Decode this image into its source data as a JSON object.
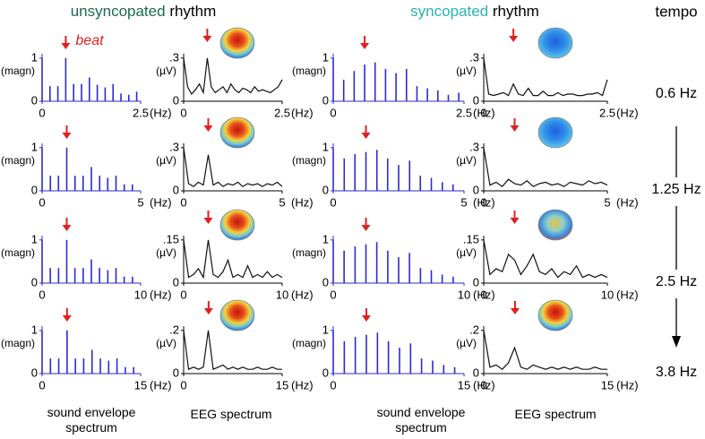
{
  "headings": [
    {
      "highlight": "unsyncopated",
      "rest": "rhythm"
    },
    {
      "highlight": "syncopated",
      "rest": "rhythm"
    }
  ],
  "tempo_title": "tempo",
  "tempos": [
    "0.6 Hz",
    "1.25 Hz",
    "2.5 Hz",
    "3.8 Hz"
  ],
  "annotation": "beat",
  "footers": [
    "sound envelope spectrum",
    "EEG spectrum",
    "sound envelope spectrum",
    "EEG spectrum"
  ],
  "chart_data": [
    {
      "type": "stem",
      "ylabel": "(magn)",
      "xlabel": "(Hz)",
      "color": "#2b2bd0",
      "xlim": [
        0,
        2.5
      ],
      "xticks": [
        0,
        2.5
      ],
      "ylim": [
        0,
        1.1
      ],
      "yticks": [
        0,
        1
      ],
      "x": [
        0,
        0.2,
        0.4,
        0.6,
        0.8,
        1,
        1.2,
        1.4,
        1.6,
        1.8,
        2,
        2.2,
        2.4
      ],
      "values": [
        1,
        0.35,
        0.35,
        1,
        0.4,
        0.4,
        0.55,
        0.38,
        0.32,
        0.4,
        0.18,
        0.15,
        0.22
      ]
    },
    {
      "type": "line",
      "ylabel": "(µV)",
      "xlabel": "(Hz)",
      "color": "#111111",
      "xlim": [
        0,
        2.5
      ],
      "xticks": [
        0,
        2.5
      ],
      "ylim": [
        0,
        0.33
      ],
      "yticks": [
        0,
        {
          "value": 0.3,
          "label": ".3"
        }
      ],
      "x": [
        0,
        0.1,
        0.2,
        0.3,
        0.4,
        0.5,
        0.6,
        0.7,
        0.8,
        0.9,
        1,
        1.1,
        1.2,
        1.3,
        1.4,
        1.5,
        1.6,
        1.7,
        1.8,
        1.9,
        2,
        2.1,
        2.2,
        2.3,
        2.4,
        2.5
      ],
      "values": [
        0.3,
        0.1,
        0.05,
        0.08,
        0.12,
        0.06,
        0.3,
        0.1,
        0.06,
        0.08,
        0.1,
        0.06,
        0.12,
        0.08,
        0.06,
        0.09,
        0.08,
        0.06,
        0.1,
        0.07,
        0.08,
        0.07,
        0.06,
        0.08,
        0.1,
        0.15
      ]
    },
    {
      "type": "stem",
      "ylabel": "(magn)",
      "xlabel": "(Hz)",
      "color": "#2b2bd0",
      "xlim": [
        0,
        2.5
      ],
      "xticks": [
        0,
        2.5
      ],
      "ylim": [
        0,
        1.1
      ],
      "yticks": [
        0,
        1
      ],
      "x": [
        0,
        0.2,
        0.4,
        0.6,
        0.8,
        1,
        1.2,
        1.4,
        1.6,
        1.8,
        2,
        2.2,
        2.4
      ],
      "values": [
        1,
        0.5,
        0.7,
        0.85,
        0.9,
        0.75,
        0.65,
        0.75,
        0.35,
        0.3,
        0.25,
        0.15,
        0.2
      ]
    },
    {
      "type": "line",
      "ylabel": "(µV)",
      "xlabel": "(Hz)",
      "color": "#111111",
      "xlim": [
        0,
        2.5
      ],
      "xticks": [
        0,
        2.5
      ],
      "ylim": [
        0,
        0.33
      ],
      "yticks": [
        0,
        {
          "value": 0.3,
          "label": ".3"
        }
      ],
      "x": [
        0,
        0.1,
        0.2,
        0.3,
        0.4,
        0.5,
        0.6,
        0.7,
        0.8,
        0.9,
        1,
        1.1,
        1.2,
        1.3,
        1.4,
        1.5,
        1.6,
        1.7,
        1.8,
        1.9,
        2,
        2.1,
        2.2,
        2.3,
        2.4,
        2.5
      ],
      "values": [
        0.3,
        0.05,
        0.04,
        0.05,
        0.06,
        0.04,
        0.12,
        0.05,
        0.04,
        0.09,
        0.04,
        0.04,
        0.07,
        0.04,
        0.04,
        0.06,
        0.04,
        0.05,
        0.05,
        0.04,
        0.04,
        0.05,
        0.05,
        0.06,
        0.04,
        0.15
      ]
    },
    {
      "type": "stem",
      "ylabel": "(magn)",
      "xlabel": "(Hz)",
      "color": "#2b2bd0",
      "xlim": [
        0,
        5
      ],
      "xticks": [
        0,
        5
      ],
      "ylim": [
        0,
        1.1
      ],
      "yticks": [
        0,
        1
      ],
      "x": [
        0,
        0.42,
        0.83,
        1.25,
        1.67,
        2.08,
        2.5,
        2.92,
        3.33,
        3.75,
        4.17,
        4.58
      ],
      "values": [
        1,
        0.35,
        0.35,
        1,
        0.35,
        0.35,
        0.55,
        0.35,
        0.3,
        0.35,
        0.15,
        0.15
      ]
    },
    {
      "type": "line",
      "ylabel": "(µV)",
      "xlabel": "(Hz)",
      "color": "#111111",
      "xlim": [
        0,
        5
      ],
      "xticks": [
        0,
        5
      ],
      "ylim": [
        0,
        0.33
      ],
      "yticks": [
        0,
        {
          "value": 0.3,
          "label": ".3"
        }
      ],
      "x": [
        0,
        0.25,
        0.5,
        0.75,
        1,
        1.25,
        1.5,
        1.75,
        2,
        2.25,
        2.5,
        2.75,
        3,
        3.25,
        3.5,
        3.75,
        4,
        4.25,
        4.5,
        4.75,
        5
      ],
      "values": [
        0.3,
        0.05,
        0.03,
        0.06,
        0.04,
        0.25,
        0.04,
        0.06,
        0.03,
        0.05,
        0.04,
        0.06,
        0.03,
        0.05,
        0.04,
        0.05,
        0.03,
        0.05,
        0.04,
        0.06,
        0.03
      ]
    },
    {
      "type": "stem",
      "ylabel": "(magn)",
      "xlabel": "(Hz)",
      "color": "#2b2bd0",
      "xlim": [
        0,
        5
      ],
      "xticks": [
        0,
        5
      ],
      "ylim": [
        0,
        1.1
      ],
      "yticks": [
        0,
        1
      ],
      "x": [
        0,
        0.42,
        0.83,
        1.25,
        1.67,
        2.08,
        2.5,
        2.92,
        3.33,
        3.75,
        4.17,
        4.58
      ],
      "values": [
        1,
        0.75,
        0.85,
        0.9,
        0.95,
        0.75,
        0.6,
        0.7,
        0.35,
        0.3,
        0.2,
        0.15
      ]
    },
    {
      "type": "line",
      "ylabel": "(µV)",
      "xlabel": "(Hz)",
      "color": "#111111",
      "xlim": [
        0,
        5
      ],
      "xticks": [
        0,
        5
      ],
      "ylim": [
        0,
        0.33
      ],
      "yticks": [
        0,
        {
          "value": 0.3,
          "label": ".3"
        }
      ],
      "x": [
        0,
        0.25,
        0.5,
        0.75,
        1,
        1.25,
        1.5,
        1.75,
        2,
        2.25,
        2.5,
        2.75,
        3,
        3.25,
        3.5,
        3.75,
        4,
        4.25,
        4.5,
        4.75,
        5
      ],
      "values": [
        0.3,
        0.04,
        0.06,
        0.03,
        0.08,
        0.05,
        0.04,
        0.07,
        0.03,
        0.05,
        0.06,
        0.04,
        0.05,
        0.03,
        0.06,
        0.05,
        0.04,
        0.07,
        0.05,
        0.06,
        0.04
      ]
    },
    {
      "type": "stem",
      "ylabel": "(magn)",
      "xlabel": "(Hz)",
      "color": "#2b2bd0",
      "xlim": [
        0,
        10
      ],
      "xticks": [
        0,
        10
      ],
      "ylim": [
        0,
        1.1
      ],
      "yticks": [
        0,
        1
      ],
      "x": [
        0,
        0.83,
        1.67,
        2.5,
        3.33,
        4.17,
        5,
        5.83,
        6.67,
        7.5,
        8.33,
        9.17
      ],
      "values": [
        1,
        0.35,
        0.35,
        1,
        0.35,
        0.35,
        0.55,
        0.35,
        0.3,
        0.35,
        0.15,
        0.15
      ]
    },
    {
      "type": "line",
      "ylabel": "(µV)",
      "xlabel": "(Hz)",
      "color": "#111111",
      "xlim": [
        0,
        10
      ],
      "xticks": [
        0,
        10
      ],
      "ylim": [
        0,
        0.165
      ],
      "yticks": [
        0,
        {
          "value": 0.15,
          "label": ".15"
        }
      ],
      "x": [
        0,
        0.5,
        1,
        1.5,
        2,
        2.5,
        3,
        3.5,
        4,
        4.5,
        5,
        5.5,
        6,
        6.5,
        7,
        7.5,
        8,
        8.5,
        9,
        9.5,
        10
      ],
      "values": [
        0.15,
        0.02,
        0.03,
        0.05,
        0.02,
        0.15,
        0.03,
        0.02,
        0.04,
        0.08,
        0.02,
        0.03,
        0.02,
        0.06,
        0.02,
        0.03,
        0.02,
        0.04,
        0.02,
        0.03,
        0.02
      ]
    },
    {
      "type": "stem",
      "ylabel": "(magn)",
      "xlabel": "(Hz)",
      "color": "#2b2bd0",
      "xlim": [
        0,
        10
      ],
      "xticks": [
        0,
        10
      ],
      "ylim": [
        0,
        1.1
      ],
      "yticks": [
        0,
        1
      ],
      "x": [
        0,
        0.83,
        1.67,
        2.5,
        3.33,
        4.17,
        5,
        5.83,
        6.67,
        7.5,
        8.33,
        9.17
      ],
      "values": [
        1,
        0.75,
        0.85,
        0.9,
        0.95,
        0.75,
        0.6,
        0.7,
        0.35,
        0.3,
        0.2,
        0.15
      ]
    },
    {
      "type": "line",
      "ylabel": "(µV)",
      "xlabel": "(Hz)",
      "color": "#111111",
      "xlim": [
        0,
        10
      ],
      "xticks": [
        0,
        10
      ],
      "ylim": [
        0,
        0.165
      ],
      "yticks": [
        0,
        {
          "value": 0.15,
          "label": ".15"
        }
      ],
      "x": [
        0,
        0.5,
        1,
        1.5,
        2,
        2.5,
        3,
        3.5,
        4,
        4.5,
        5,
        5.5,
        6,
        6.5,
        7,
        7.5,
        8,
        8.5,
        9,
        9.5,
        10
      ],
      "values": [
        0.15,
        0.03,
        0.05,
        0.04,
        0.1,
        0.08,
        0.03,
        0.06,
        0.1,
        0.04,
        0.03,
        0.05,
        0.02,
        0.04,
        0.03,
        0.06,
        0.02,
        0.03,
        0.02,
        0.03,
        0.02
      ]
    },
    {
      "type": "stem",
      "ylabel": "(magn)",
      "xlabel": "(Hz)",
      "color": "#2b2bd0",
      "xlim": [
        0,
        15
      ],
      "xticks": [
        0,
        15
      ],
      "ylim": [
        0,
        1.1
      ],
      "yticks": [
        0,
        1
      ],
      "x": [
        0,
        1.27,
        2.53,
        3.8,
        5.07,
        6.33,
        7.6,
        8.87,
        10.13,
        11.4,
        12.67,
        13.93
      ],
      "values": [
        1,
        0.35,
        0.35,
        1,
        0.35,
        0.35,
        0.55,
        0.35,
        0.3,
        0.35,
        0.15,
        0.15
      ]
    },
    {
      "type": "line",
      "ylabel": "(µV)",
      "xlabel": "(Hz)",
      "color": "#111111",
      "xlim": [
        0,
        15
      ],
      "xticks": [
        0,
        15
      ],
      "ylim": [
        0,
        0.22
      ],
      "yticks": [
        0,
        {
          "value": 0.2,
          "label": ".2"
        }
      ],
      "x": [
        0,
        0.75,
        1.5,
        2.25,
        3,
        3.75,
        4.5,
        5.25,
        6,
        6.75,
        7.5,
        8.25,
        9,
        9.75,
        10.5,
        11.25,
        12,
        12.75,
        13.5,
        14.25,
        15
      ],
      "values": [
        0.2,
        0.02,
        0.03,
        0.02,
        0.03,
        0.2,
        0.02,
        0.03,
        0.04,
        0.02,
        0.03,
        0.02,
        0.03,
        0.02,
        0.02,
        0.03,
        0.02,
        0.02,
        0.03,
        0.02,
        0.02
      ]
    },
    {
      "type": "stem",
      "ylabel": "(magn)",
      "xlabel": "(Hz)",
      "color": "#2b2bd0",
      "xlim": [
        0,
        15
      ],
      "xticks": [
        0,
        15
      ],
      "ylim": [
        0,
        1.1
      ],
      "yticks": [
        0,
        1
      ],
      "x": [
        0,
        1.27,
        2.53,
        3.8,
        5.07,
        6.33,
        7.6,
        8.87,
        10.13,
        11.4,
        12.67,
        13.93
      ],
      "values": [
        1,
        0.75,
        0.85,
        0.9,
        0.95,
        0.75,
        0.6,
        0.7,
        0.35,
        0.3,
        0.2,
        0.15
      ]
    },
    {
      "type": "line",
      "ylabel": "(µV)",
      "xlabel": "(Hz)",
      "color": "#111111",
      "xlim": [
        0,
        15
      ],
      "xticks": [
        0,
        15
      ],
      "ylim": [
        0,
        0.22
      ],
      "yticks": [
        0,
        {
          "value": 0.2,
          "label": ".2"
        }
      ],
      "x": [
        0,
        0.75,
        1.5,
        2.25,
        3,
        3.75,
        4.5,
        5.25,
        6,
        6.75,
        7.5,
        8.25,
        9,
        9.75,
        10.5,
        11.25,
        12,
        12.75,
        13.5,
        14.25,
        15
      ],
      "values": [
        0.2,
        0.03,
        0.04,
        0.02,
        0.05,
        0.12,
        0.03,
        0.02,
        0.04,
        0.03,
        0.02,
        0.03,
        0.02,
        0.03,
        0.02,
        0.03,
        0.02,
        0.02,
        0.03,
        0.02,
        0.02
      ]
    }
  ]
}
